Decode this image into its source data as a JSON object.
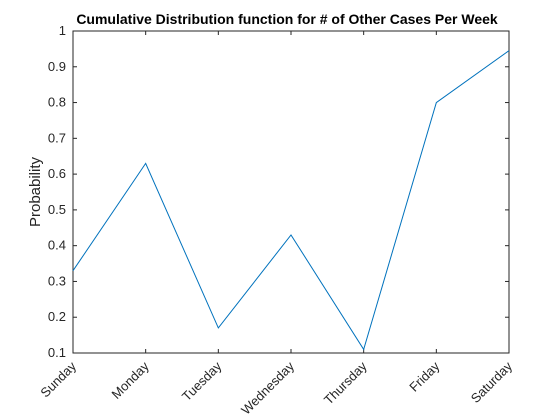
{
  "chart_data": {
    "type": "line",
    "title": "Cumulative Distribution function for # of Other Cases Per Week",
    "xlabel": "",
    "ylabel": "Probability",
    "categories": [
      "Sunday",
      "Monday",
      "Tuesday",
      "Wednesday",
      "Thursday",
      "Friday",
      "Saturday"
    ],
    "series": [
      {
        "values": [
          0.33,
          0.63,
          0.17,
          0.43,
          0.11,
          0.8,
          0.945
        ],
        "color": "#0072bd"
      }
    ],
    "ylim": [
      0.1,
      1
    ],
    "yticks": [
      "0.1",
      "0.2",
      "0.3",
      "0.4",
      "0.5",
      "0.6",
      "0.7",
      "0.8",
      "0.9",
      "1"
    ],
    "grid": false,
    "legend": "none"
  }
}
